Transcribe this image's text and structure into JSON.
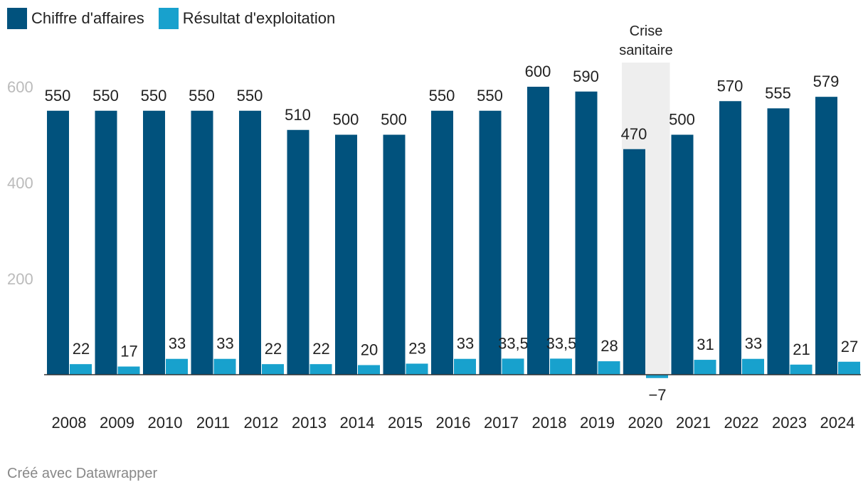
{
  "legend": {
    "revenue_label": "Chiffre d'affaires",
    "ebit_label": "Résultat d'exploitation"
  },
  "colors": {
    "revenue": "#01527d",
    "ebit": "#18a1cd",
    "highlight": "#eeeeee",
    "axis": "#333333",
    "tick_y": "#bbbbbb"
  },
  "footer": {
    "credit": "Créé avec Datawrapper"
  },
  "chart_data": {
    "type": "bar",
    "categories": [
      "2008",
      "2009",
      "2010",
      "2011",
      "2012",
      "2013",
      "2014",
      "2015",
      "2016",
      "2017",
      "2018",
      "2019",
      "2020",
      "2021",
      "2022",
      "2023",
      "2024"
    ],
    "series": [
      {
        "name": "Chiffre d'affaires",
        "values": [
          550,
          550,
          550,
          550,
          550,
          510,
          500,
          500,
          550,
          550,
          600,
          590,
          470,
          500,
          570,
          555,
          579
        ],
        "labels": [
          "550",
          "550",
          "550",
          "550",
          "550",
          "510",
          "500",
          "500",
          "550",
          "550",
          "600",
          "590",
          "470",
          "500",
          "570",
          "555",
          "579"
        ]
      },
      {
        "name": "Résultat d'exploitation",
        "values": [
          22,
          17,
          33,
          33,
          22,
          22,
          20,
          23,
          33,
          33.5,
          33.5,
          28,
          -7,
          31,
          33,
          21,
          27
        ],
        "labels": [
          "22",
          "17",
          "33",
          "33",
          "22",
          "22",
          "20",
          "23",
          "33",
          "33,5",
          "33,5",
          "28",
          "−7",
          "31",
          "33",
          "21",
          "27"
        ]
      }
    ],
    "y_ticks": [
      200,
      400,
      600
    ],
    "y_tick_labels": [
      "200",
      "400",
      "600"
    ],
    "ylim": [
      -10,
      600
    ],
    "grid": false,
    "legend_position": "top-left",
    "annotation": {
      "category": "2020",
      "text_line1": "Crise",
      "text_line2": "sanitaire"
    }
  }
}
